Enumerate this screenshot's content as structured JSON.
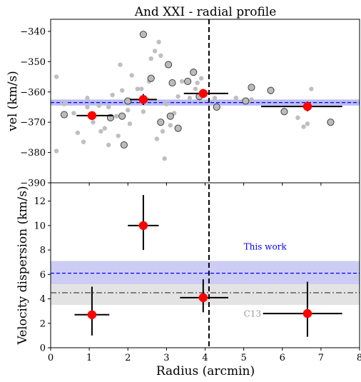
{
  "chart_data": [
    {
      "type": "scatter",
      "title": "And XXI - radial profile",
      "xlabel": "",
      "ylabel": "vel (km/s)",
      "xlim": [
        0,
        8
      ],
      "ylim": [
        -390,
        -336
      ],
      "yticks": [
        -390,
        -380,
        -370,
        -360,
        -350,
        -340
      ],
      "grid": false,
      "reference_lines": {
        "vertical_dashed_x": 4.1,
        "systemic_velocity": -363.5,
        "systemic_band": [
          -364.5,
          -362.5
        ]
      },
      "members": [
        [
          0.35,
          -367.5
        ],
        [
          1.55,
          -368.5
        ],
        [
          1.85,
          -368.0
        ],
        [
          1.9,
          -377.5
        ],
        [
          2.0,
          -363.0
        ],
        [
          2.4,
          -341.0
        ],
        [
          2.6,
          -355.5
        ],
        [
          2.85,
          -370.0
        ],
        [
          3.05,
          -351.0
        ],
        [
          3.1,
          -368.0
        ],
        [
          3.15,
          -357.0
        ],
        [
          3.3,
          -372.0
        ],
        [
          3.55,
          -356.5
        ],
        [
          3.7,
          -353.5
        ],
        [
          3.85,
          -361.5
        ],
        [
          4.3,
          -365.0
        ],
        [
          5.05,
          -363.0
        ],
        [
          5.2,
          -358.5
        ],
        [
          5.7,
          -359.5
        ],
        [
          6.05,
          -366.5
        ],
        [
          7.25,
          -370.0
        ]
      ],
      "nonmembers": [
        [
          0.15,
          -355.0
        ],
        [
          0.15,
          -379.5
        ],
        [
          0.35,
          -364.0
        ],
        [
          0.6,
          -367.0
        ],
        [
          0.7,
          -373.5
        ],
        [
          0.85,
          -376.5
        ],
        [
          0.95,
          -362.0
        ],
        [
          0.95,
          -365.0
        ],
        [
          1.1,
          -370.0
        ],
        [
          1.25,
          -364.5
        ],
        [
          1.3,
          -373.0
        ],
        [
          1.4,
          -372.0
        ],
        [
          1.5,
          -365.0
        ],
        [
          1.5,
          -377.5
        ],
        [
          1.6,
          -361.0
        ],
        [
          1.7,
          -368.0
        ],
        [
          1.75,
          -374.5
        ],
        [
          1.8,
          -351.0
        ],
        [
          1.85,
          -359.5
        ],
        [
          2.0,
          -366.0
        ],
        [
          2.05,
          -370.5
        ],
        [
          2.1,
          -354.5
        ],
        [
          2.25,
          -359.0
        ],
        [
          2.35,
          -359.0
        ],
        [
          2.4,
          -366.5
        ],
        [
          2.5,
          -362.5
        ],
        [
          2.55,
          -356.5
        ],
        [
          2.6,
          -349.0
        ],
        [
          2.7,
          -346.5
        ],
        [
          2.75,
          -375.5
        ],
        [
          2.8,
          -343.5
        ],
        [
          2.85,
          -348.0
        ],
        [
          2.9,
          -373.0
        ],
        [
          2.95,
          -382.0
        ],
        [
          3.0,
          -364.0
        ],
        [
          3.1,
          -371.0
        ],
        [
          3.2,
          -367.0
        ],
        [
          3.3,
          -361.5
        ],
        [
          3.4,
          -356.5
        ],
        [
          3.6,
          -362.0
        ],
        [
          3.75,
          -359.0
        ],
        [
          3.8,
          -357.0
        ],
        [
          3.9,
          -355.5
        ],
        [
          4.0,
          -360.0
        ],
        [
          4.25,
          -362.0
        ],
        [
          4.8,
          -362.0
        ],
        [
          5.2,
          -362.5
        ],
        [
          6.4,
          -368.5
        ],
        [
          6.55,
          -371.5
        ],
        [
          6.65,
          -370.5
        ],
        [
          6.75,
          -359.0
        ]
      ],
      "binned_means": [
        {
          "x": 1.07,
          "y": -367.8,
          "xerr": [
            0.4,
            0.55
          ],
          "yerr": 0.9
        },
        {
          "x": 2.4,
          "y": -362.5,
          "xerr": [
            0.35,
            0.35
          ],
          "yerr": 1.8
        },
        {
          "x": 3.95,
          "y": -360.5,
          "xerr": [
            0.5,
            0.65
          ],
          "yerr": 1.5
        },
        {
          "x": 6.65,
          "y": -364.8,
          "xerr": [
            1.2,
            0.9
          ],
          "yerr": 1.6
        }
      ],
      "colors": {
        "members": "#bbbbbb",
        "nonmembers": "#bfbfbf",
        "means": "#ff0000",
        "systemic": "#0000ff",
        "systemic_band": "#aaaaee"
      }
    },
    {
      "type": "scatter",
      "title": "",
      "xlabel": "Radius (arcmin)",
      "ylabel": "Velocity dispersion (km/s)",
      "xlim": [
        0,
        8
      ],
      "ylim": [
        0,
        13.5
      ],
      "xticks": [
        0,
        1,
        2,
        3,
        4,
        5,
        6,
        7,
        8
      ],
      "yticks": [
        0,
        2,
        4,
        6,
        8,
        10,
        12
      ],
      "grid": false,
      "points": [
        {
          "x": 1.07,
          "y": 2.7,
          "xerr": [
            0.45,
            0.45
          ],
          "yerr": [
            1.7,
            2.3
          ]
        },
        {
          "x": 2.4,
          "y": 10.0,
          "xerr": [
            0.4,
            0.4
          ],
          "yerr": [
            2.0,
            2.5
          ]
        },
        {
          "x": 3.95,
          "y": 4.1,
          "xerr": [
            0.6,
            0.65
          ],
          "yerr": [
            1.2,
            1.5
          ]
        },
        {
          "x": 6.65,
          "y": 2.8,
          "xerr": [
            1.15,
            0.9
          ],
          "yerr": [
            1.9,
            2.6
          ]
        }
      ],
      "reference_lines": [
        {
          "label": "This work",
          "value": 6.1,
          "band": [
            5.2,
            7.1
          ],
          "color": "#0000ff",
          "band_color": "#ccccf5",
          "style": "dashed"
        },
        {
          "label": "C13",
          "value": 4.5,
          "band": [
            3.5,
            5.2
          ],
          "color": "#444444",
          "band_color": "#e3e3e3",
          "style": "dashdot"
        }
      ],
      "vertical_dashed_x": 4.1,
      "colors": {
        "points": "#ff0000"
      }
    }
  ]
}
